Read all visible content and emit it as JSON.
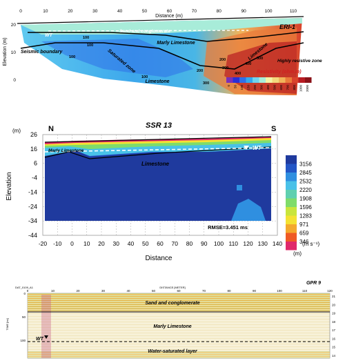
{
  "eri": {
    "axis_title_x": "Distance (m)",
    "axis_title_y": "Elevation (m)",
    "label": "ERI-1",
    "x_ticks": [
      "0",
      "10",
      "20",
      "30",
      "40",
      "50",
      "60",
      "70",
      "80",
      "90",
      "100",
      "110"
    ],
    "y_ticks": [
      "20",
      "10",
      "0"
    ],
    "layers": {
      "sand": "Sand and conglomerate",
      "marly": "Marly Limestone",
      "limestone_right": "Limestone",
      "limestone_bottom": "Limestone",
      "saturated": "Saturated zone",
      "seismic": "Seismic boundary",
      "resistive": "Highly resistive zone",
      "wt": "WT"
    },
    "contours": [
      "100",
      "100",
      "100",
      "100",
      "200",
      "300",
      "200",
      "300",
      "400",
      "400",
      "500"
    ],
    "scale_title": "Resistivity (ohm.m)",
    "scale_values": [
      "0",
      "50",
      "100",
      "150",
      "200",
      "300",
      "400",
      "500",
      "600",
      "700",
      "800",
      "1000",
      "2000"
    ],
    "scale_colors": [
      "#7a2fb8",
      "#2a2fd6",
      "#2f6fe8",
      "#34a8ee",
      "#6fd3ef",
      "#a8ecd9",
      "#f4f2a6",
      "#f3d77c",
      "#f0b35a",
      "#ea7b3a",
      "#d9432c",
      "#b81c22",
      "#8a1218"
    ]
  },
  "ssr": {
    "title": "SSR 13",
    "north": "N",
    "south": "S",
    "y_unit": "(m)",
    "y_title": "Elevation",
    "x_title": "Distance",
    "x_unit": "(m)",
    "y_ticks": [
      "26",
      "16",
      "6",
      "-4",
      "-14",
      "-24",
      "-34",
      "-44"
    ],
    "x_ticks": [
      "-20",
      "-10",
      "0",
      "10",
      "20",
      "30",
      "40",
      "50",
      "60",
      "70",
      "80",
      "90",
      "100",
      "110",
      "120",
      "130",
      "140"
    ],
    "label_marly": "Marly Limestone",
    "label_limestone": "Limestone",
    "label_wt": "WT",
    "rmse": "RMSE=3.451 ms",
    "scale_values": [
      "3156",
      "2845",
      "2532",
      "2220",
      "1908",
      "1596",
      "1283",
      "971",
      "659",
      "346"
    ],
    "scale_unit": "(m s⁻¹)",
    "scale_colors": [
      "#1f3a9e",
      "#2356c6",
      "#2f8fe0",
      "#49c1e8",
      "#5fd0b0",
      "#7fdc6a",
      "#c9e53c",
      "#f4e232",
      "#f4a92c",
      "#ef5a24",
      "#e0286a"
    ]
  },
  "gpr": {
    "label": "GPR 9",
    "file": "DAT_0109_A1",
    "x_axis_title": "DISTANCE [METER]",
    "y_axis_title": "TIME [ns]",
    "x_ticks": [
      "0",
      "10",
      "20",
      "30",
      "40",
      "50",
      "60",
      "70",
      "80",
      "90",
      "100",
      "110",
      "120"
    ],
    "y_ticks": [
      "0",
      "50",
      "100"
    ],
    "right_ticks": [
      "21",
      "20",
      "19",
      "18",
      "17",
      "16",
      "15",
      "14"
    ],
    "sand": "Sand and conglomerate",
    "marly": "Marly Limestone",
    "water": "Water-saturated layer",
    "wt": "WT"
  }
}
